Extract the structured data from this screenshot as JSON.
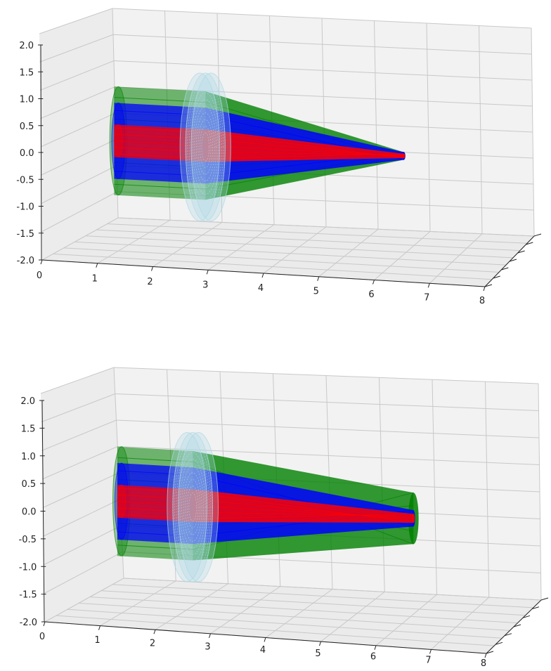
{
  "chart_data": [
    {
      "type": "3d-ray-trace",
      "panel": "top",
      "xlabel": "",
      "ylabel": "",
      "zlabel": "",
      "xlim": [
        0,
        8
      ],
      "zlim": [
        -2.0,
        2.0
      ],
      "x_ticks": [
        "0",
        "1",
        "2",
        "3",
        "4",
        "5",
        "6",
        "7",
        "8"
      ],
      "z_ticks": [
        "-2.0",
        "-1.5",
        "-1.0",
        "-0.5",
        "0.0",
        "0.5",
        "1.0",
        "1.5",
        "2.0"
      ],
      "grid": true,
      "lens": {
        "x": 2.3,
        "radius": 1.3,
        "color": "#add8e6"
      },
      "beam_start_x": 0.6,
      "beam_end_x": 6.0,
      "focus": {
        "x": 5.5,
        "z": -0.2
      },
      "ray_bundles": [
        {
          "color": "#008000",
          "radius_in": 1.0,
          "radius_out": 0.07
        },
        {
          "color": "#0000ff",
          "radius_in": 0.7,
          "radius_out": 0.07
        },
        {
          "color": "#ff0000",
          "radius_in": 0.3,
          "radius_out": 0.04
        }
      ]
    },
    {
      "type": "3d-ray-trace",
      "panel": "bottom",
      "xlabel": "",
      "ylabel": "",
      "zlabel": "",
      "xlim": [
        0,
        8
      ],
      "zlim": [
        -2.0,
        2.0
      ],
      "x_ticks": [
        "0",
        "1",
        "2",
        "3",
        "4",
        "5",
        "6",
        "7",
        "8"
      ],
      "z_ticks": [
        "-2.0",
        "-1.5",
        "-1.0",
        "-0.5",
        "0.0",
        "0.5",
        "1.0",
        "1.5",
        "2.0"
      ],
      "grid": true,
      "lens": {
        "x": 2.0,
        "radius": 1.3,
        "color": "#add8e6"
      },
      "beam_start_x": 0.6,
      "beam_end_x": 6.1,
      "focus": {
        "x": 4.2,
        "z": -0.2
      },
      "ray_bundles": [
        {
          "color": "#008000",
          "radius_in": 1.0,
          "radius_out": 0.47
        },
        {
          "color": "#0000ff",
          "radius_in": 0.7,
          "radius_out": 0.15
        },
        {
          "color": "#ff0000",
          "radius_in": 0.3,
          "radius_out": 0.08
        }
      ]
    }
  ]
}
